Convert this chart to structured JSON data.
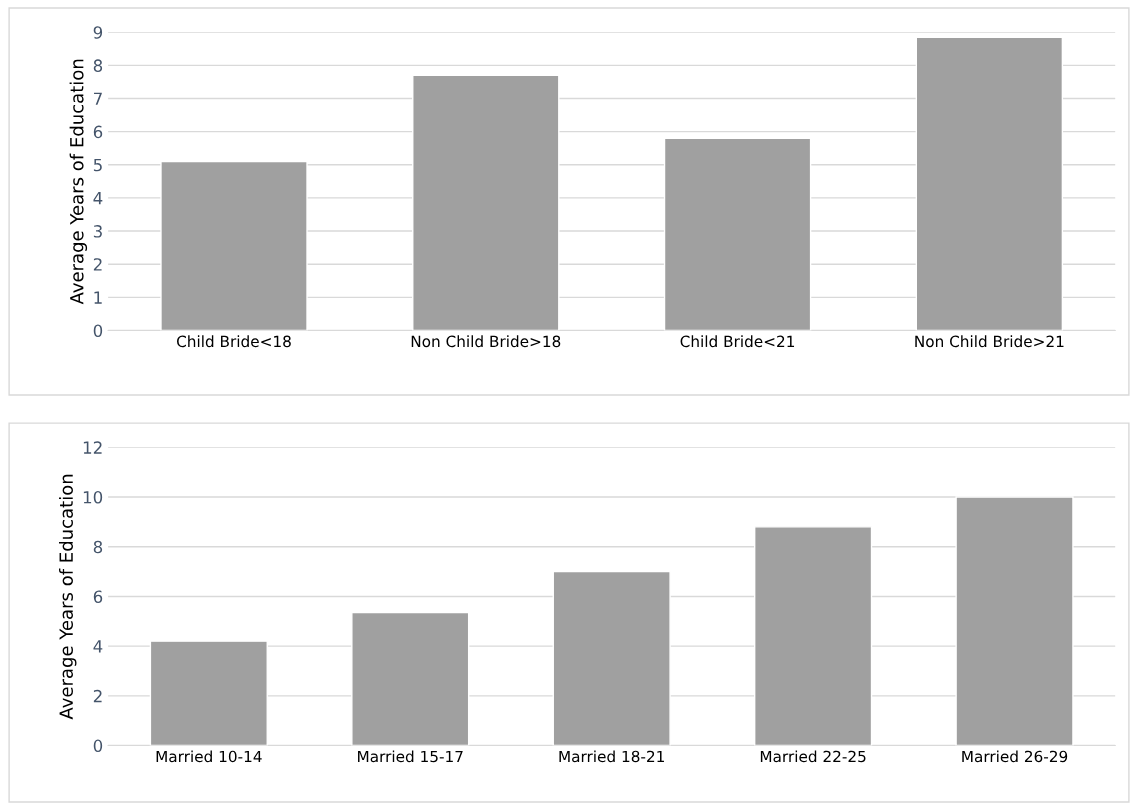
{
  "chart_data": [
    {
      "type": "bar",
      "ylabel": "Average Years of Education",
      "categories": [
        "Child Bride<18",
        "Non Child Bride>18",
        "Child Bride<21",
        "Non Child Bride>21"
      ],
      "values": [
        5.1,
        7.7,
        5.8,
        8.85
      ],
      "color": "#a0a0a0",
      "ylim": [
        0,
        9
      ],
      "yticks": [
        0,
        1,
        2,
        3,
        4,
        5,
        6,
        7,
        8,
        9
      ],
      "grid": "y"
    },
    {
      "type": "bar",
      "ylabel": "Average Years of Education",
      "categories": [
        "Married 10-14",
        "Married 15-17",
        "Married 18-21",
        "Married 22-25",
        "Married 26-29"
      ],
      "values": [
        4.2,
        5.35,
        7.0,
        8.8,
        10.0
      ],
      "color": "#a0a0a0",
      "ylim": [
        0,
        12
      ],
      "yticks": [
        0,
        2,
        4,
        6,
        8,
        10,
        12
      ],
      "grid": "y"
    }
  ]
}
